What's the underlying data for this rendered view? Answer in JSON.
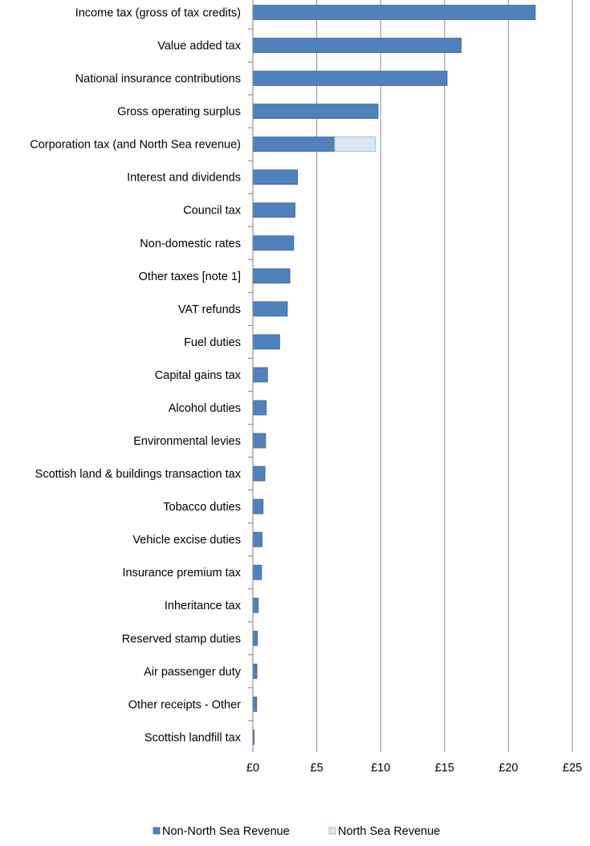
{
  "chart_data": {
    "type": "bar",
    "orientation": "horizontal",
    "stacked": true,
    "categories": [
      "Income tax (gross of tax credits)",
      "Value added tax",
      "National insurance contributions",
      "Gross operating surplus",
      "Corporation tax (and North Sea revenue)",
      "Interest and dividends",
      "Council tax",
      "Non-domestic rates",
      "Other taxes [note 1]",
      "VAT refunds",
      "Fuel duties",
      "Capital gains tax",
      "Alcohol duties",
      "Environmental levies",
      "Scottish land & buildings transaction tax",
      "Tobacco duties",
      "Vehicle excise duties",
      "Insurance premium tax",
      "Inheritance tax",
      "Reserved stamp duties",
      "Air passenger duty",
      "Other receipts - Other",
      "Scottish landfill tax"
    ],
    "series": [
      {
        "name": "Non-North Sea Revenue",
        "color": "#4F81BD",
        "values": [
          22.1,
          16.3,
          15.2,
          9.8,
          6.4,
          3.5,
          3.3,
          3.2,
          2.9,
          2.7,
          2.1,
          1.15,
          1.05,
          1.0,
          0.95,
          0.8,
          0.72,
          0.68,
          0.42,
          0.35,
          0.32,
          0.3,
          0.1
        ]
      },
      {
        "name": "North Sea Revenue",
        "color": "#DCE6F2",
        "values": [
          0,
          0,
          0,
          0,
          3.2,
          0,
          0,
          0,
          0,
          0,
          0,
          0,
          0,
          0,
          0,
          0,
          0,
          0,
          0,
          0,
          0,
          0,
          0
        ]
      }
    ],
    "xlim": [
      0,
      25
    ],
    "xticks": [
      0,
      5,
      10,
      15,
      20,
      25
    ],
    "xtick_labels": [
      "£0",
      "£5",
      "£10",
      "£15",
      "£20",
      "£25"
    ],
    "grid": "vertical",
    "legend": "bottom"
  }
}
